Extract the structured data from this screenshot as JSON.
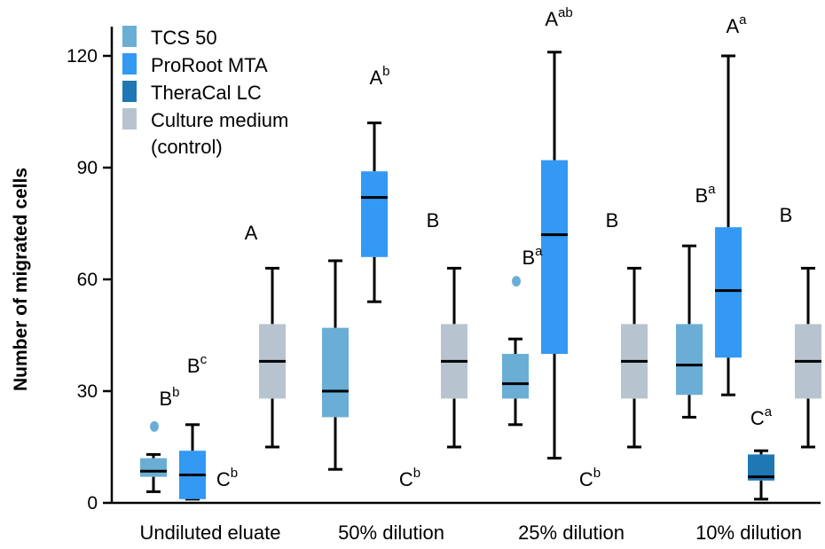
{
  "chart_data": {
    "type": "box",
    "ylabel": "Number of migrated cells",
    "ylim": [
      0,
      130
    ],
    "yticks": [
      0,
      30,
      60,
      90,
      120
    ],
    "categories": [
      "Undiluted eluate",
      "50% dilution",
      "25% dilution",
      "10% dilution"
    ],
    "legend_position": "top-left",
    "series": [
      {
        "name": "TCS 50",
        "color": "#6aaed6",
        "boxes": [
          {
            "category": "Undiluted eluate",
            "min": 3,
            "q1": 7,
            "median": 8.5,
            "q3": 12,
            "max": 13,
            "outliers": [
              20.5
            ],
            "letter": "B",
            "sup": "b"
          },
          {
            "category": "50% dilution",
            "min": 9,
            "q1": 23,
            "median": 30,
            "q3": 47,
            "max": 65,
            "outliers": [],
            "letter": "",
            "sup": ""
          },
          {
            "category": "25% dilution",
            "min": 21,
            "q1": 28,
            "median": 32,
            "q3": 40,
            "max": 44,
            "outliers": [
              59.5
            ],
            "letter": "B",
            "sup": "a"
          },
          {
            "category": "10% dilution",
            "min": 23,
            "q1": 29,
            "median": 37,
            "q3": 48,
            "max": 69,
            "outliers": [],
            "letter": "B",
            "sup": "a"
          }
        ]
      },
      {
        "name": "ProRoot MTA",
        "color": "#3399f3",
        "boxes": [
          {
            "category": "Undiluted eluate",
            "min": 1,
            "q1": 1,
            "median": 7.5,
            "q3": 14,
            "max": 21,
            "outliers": [],
            "letter": "B",
            "sup": "c"
          },
          {
            "category": "50% dilution",
            "min": 54,
            "q1": 66,
            "median": 82,
            "q3": 89,
            "max": 102,
            "outliers": [],
            "letter": "A",
            "sup": "b"
          },
          {
            "category": "25% dilution",
            "min": 12,
            "q1": 40,
            "median": 72,
            "q3": 92,
            "max": 121,
            "outliers": [],
            "letter": "A",
            "sup": "ab"
          },
          {
            "category": "10% dilution",
            "min": 29,
            "q1": 39,
            "median": 57,
            "q3": 74,
            "max": 120,
            "outliers": [],
            "letter": "A",
            "sup": "a"
          }
        ]
      },
      {
        "name": "TheraCal LC",
        "color": "#1f77b4",
        "boxes": [
          {
            "category": "Undiluted eluate",
            "min": 0,
            "q1": 0,
            "median": 0,
            "q3": 0,
            "max": 0,
            "outliers": [],
            "letter": "C",
            "sup": "b"
          },
          {
            "category": "50% dilution",
            "min": 0,
            "q1": 0,
            "median": 0,
            "q3": 0,
            "max": 0,
            "outliers": [],
            "letter": "C",
            "sup": "b"
          },
          {
            "category": "25% dilution",
            "min": 0,
            "q1": 0,
            "median": 0,
            "q3": 0,
            "max": 0,
            "outliers": [],
            "letter": "C",
            "sup": "b"
          },
          {
            "category": "10% dilution",
            "min": 1,
            "q1": 6,
            "median": 7,
            "q3": 13,
            "max": 14,
            "outliers": [],
            "letter": "C",
            "sup": "a"
          }
        ]
      },
      {
        "name": "Culture medium\n(control)",
        "color": "#b7c4d0",
        "boxes": [
          {
            "category": "Undiluted eluate",
            "min": 15,
            "q1": 28,
            "median": 38,
            "q3": 48,
            "max": 63,
            "outliers": [],
            "letter": "A",
            "sup": ""
          },
          {
            "category": "50% dilution",
            "min": 15,
            "q1": 28,
            "median": 38,
            "q3": 48,
            "max": 63,
            "outliers": [],
            "letter": "B",
            "sup": ""
          },
          {
            "category": "25% dilution",
            "min": 15,
            "q1": 28,
            "median": 38,
            "q3": 48,
            "max": 63,
            "outliers": [],
            "letter": "B",
            "sup": ""
          },
          {
            "category": "10% dilution",
            "min": 15,
            "q1": 28,
            "median": 38,
            "q3": 48,
            "max": 63,
            "outliers": [],
            "letter": "B",
            "sup": ""
          }
        ]
      }
    ]
  }
}
